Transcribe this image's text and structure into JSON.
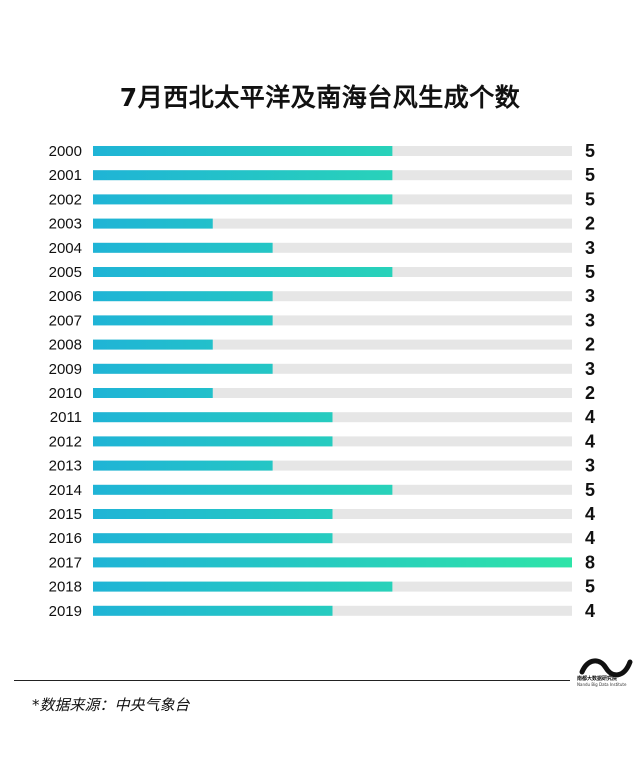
{
  "colors": {
    "bar_start": "#1fb4d6",
    "bar_end": "#2ee4a8",
    "track": "#e6e6e6",
    "text": "#111111"
  },
  "source": "*数据来源：中央气象台",
  "logo": {
    "name": "南都大数据研究院",
    "english": "Nandu Big Data Institute",
    "icon": "nandu-logo-icon"
  },
  "chart_data": {
    "type": "bar",
    "orientation": "horizontal",
    "title": "7月西北太平洋及南海台风生成个数",
    "categories": [
      "2000",
      "2001",
      "2002",
      "2003",
      "2004",
      "2005",
      "2006",
      "2007",
      "2008",
      "2009",
      "2010",
      "2011",
      "2012",
      "2013",
      "2014",
      "2015",
      "2016",
      "2017",
      "2018",
      "2019"
    ],
    "values": [
      5,
      5,
      5,
      2,
      3,
      5,
      3,
      3,
      2,
      3,
      2,
      4,
      4,
      3,
      5,
      4,
      4,
      8,
      5,
      4
    ],
    "xlim": [
      0,
      8
    ],
    "grid": false,
    "legend": false,
    "data_labels": true
  }
}
